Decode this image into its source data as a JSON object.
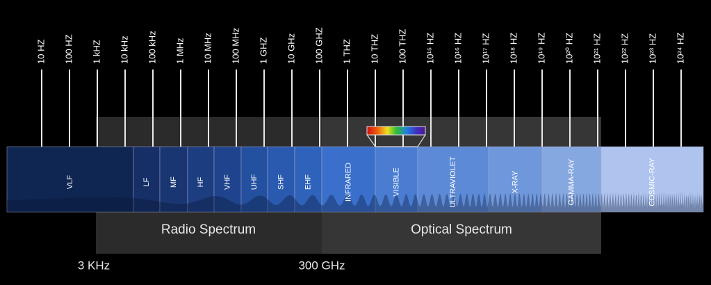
{
  "frequency_ticks": [
    "10 HZ",
    "100 HZ",
    "1 kHZ",
    "10 kHz",
    "100 kHz",
    "1 MHz",
    "10 MHz",
    "100 MHz",
    "1 GHZ",
    "10 GHz",
    "100 GHZ",
    "1 THZ",
    "10 THZ",
    "100 THZ",
    "10¹⁵ HZ",
    "10¹⁶ HZ",
    "10¹⁷ HZ",
    "10¹⁸ HZ",
    "10¹⁹ HZ",
    "10²⁰ HZ",
    "10²¹ HZ",
    "10²² HZ",
    "10²³ HZ",
    "10²⁴ HZ"
  ],
  "bands": [
    "VLF",
    "LF",
    "MF",
    "HF",
    "VHF",
    "UHF",
    "SHF",
    "EHF",
    "INFRARED",
    "VISIBLE",
    "ULTRAVIOLET",
    "X-RAY",
    "GAMMA-RAY",
    "COSMIC-RAY"
  ],
  "regions": [
    "Radio Spectrum",
    "Optical Spectrum"
  ],
  "boundaries": [
    "3 KHz",
    "300 GHz"
  ]
}
